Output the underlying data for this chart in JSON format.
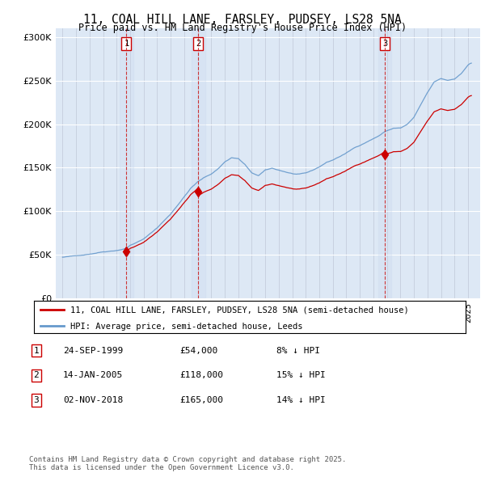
{
  "title": "11, COAL HILL LANE, FARSLEY, PUDSEY, LS28 5NA",
  "subtitle": "Price paid vs. HM Land Registry's House Price Index (HPI)",
  "bg_color": "#dde8f5",
  "line1_color": "#cc0000",
  "line2_color": "#6699cc",
  "purchase_years_num": [
    1999.73,
    2005.04,
    2018.84
  ],
  "purchase_prices": [
    54000,
    118000,
    165000
  ],
  "legend_label1": "11, COAL HILL LANE, FARSLEY, PUDSEY, LS28 5NA (semi-detached house)",
  "legend_label2": "HPI: Average price, semi-detached house, Leeds",
  "table_rows": [
    [
      "1",
      "24-SEP-1999",
      "£54,000",
      "8% ↓ HPI"
    ],
    [
      "2",
      "14-JAN-2005",
      "£118,000",
      "15% ↓ HPI"
    ],
    [
      "3",
      "02-NOV-2018",
      "£165,000",
      "14% ↓ HPI"
    ]
  ],
  "footnote": "Contains HM Land Registry data © Crown copyright and database right 2025.\nThis data is licensed under the Open Government Licence v3.0.",
  "ylim": [
    0,
    310000
  ],
  "yticks": [
    0,
    50000,
    100000,
    150000,
    200000,
    250000,
    300000
  ],
  "xlim_start": 1994.5,
  "xlim_end": 2025.9
}
